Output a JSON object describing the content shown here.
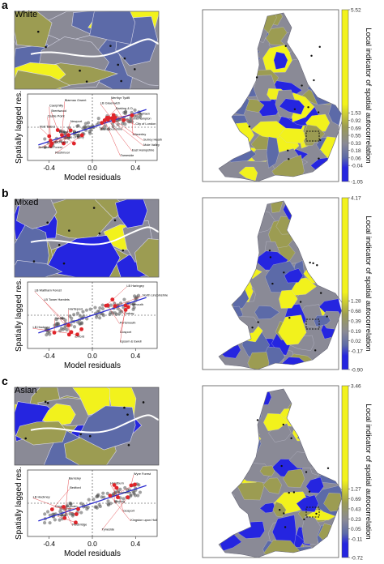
{
  "colors": {
    "yellow": "#f2f21c",
    "olive": "#9c9c52",
    "gray": "#8a8a96",
    "slate": "#5c6aa8",
    "blue": "#2525e0",
    "river": "#ffffff",
    "reg_line": "#2b2bd0",
    "point": "#555555",
    "outlier": "#e0242a"
  },
  "shared": {
    "xlabel": "Model residuals",
    "ylabel": "Spatially lagged res.",
    "cbar_title": "Local indicator of spatial autocorrelation"
  },
  "chart_data": [
    {
      "panel": "a",
      "title": "White",
      "type": "scatter",
      "xticks": [
        "-0.4",
        "0.0",
        "0.4"
      ],
      "yticks": [],
      "cbar_ticks": [
        "5.52",
        "1.53",
        "0.92",
        "0.69",
        "0.55",
        "0.33",
        "0.18",
        "0.06",
        "-0.04",
        "-1.05"
      ],
      "annotations": [
        "Merthyr Tydfil",
        "Blaenau Gwent",
        "LB Greenwich",
        "Caerphilly",
        "Barking & D.",
        "Brentwood",
        "Torfaen",
        "Castle Point",
        "Wolverhampton",
        "Newport",
        "City of London",
        "Port Talbot",
        "Monmouthshire",
        "Forest of Dean",
        "Waverley",
        "Isle of Scilly",
        "Surrey Heath",
        "Chichester",
        "Mole Valley",
        "Breckland Forest",
        "East Hampshire",
        "Rushmoor",
        "Tameside"
      ]
    },
    {
      "panel": "b",
      "title": "Mixed",
      "type": "scatter",
      "xticks": [
        "-0.4",
        "0.0",
        "0.4"
      ],
      "yticks": [],
      "cbar_ticks": [
        "4.17",
        "1.28",
        "0.68",
        "0.39",
        "0.19",
        "0.02",
        "-0.17",
        "-0.90"
      ],
      "annotations": [
        "LB Haringey",
        "LB Waltham Forest",
        "North Lincolnshire",
        "LB Tower Hamlets",
        "Plymouth",
        "Hartlepool",
        "Torbay",
        "Carlisle",
        "Portsmouth",
        "LB Hackney",
        "Gosport",
        "Oxford",
        "Epsom & Ewell"
      ]
    },
    {
      "panel": "c",
      "title": "Asian",
      "type": "scatter",
      "xticks": [
        "-0.4",
        "0.0",
        "0.4"
      ],
      "yticks": [],
      "cbar_ticks": [
        "3.46",
        "1.27",
        "0.69",
        "0.43",
        "0.23",
        "0.05",
        "-0.11",
        "-0.72"
      ],
      "annotations": [
        "Wyre Forest",
        "Barnsley",
        "Hyndburn",
        "Bedford",
        "Rochdale",
        "LB Hackney",
        "Woking",
        "County Durham",
        "Gosport",
        "Sutton",
        "Kingston upon Hull",
        "Redbridge",
        "Tyneside"
      ]
    }
  ]
}
